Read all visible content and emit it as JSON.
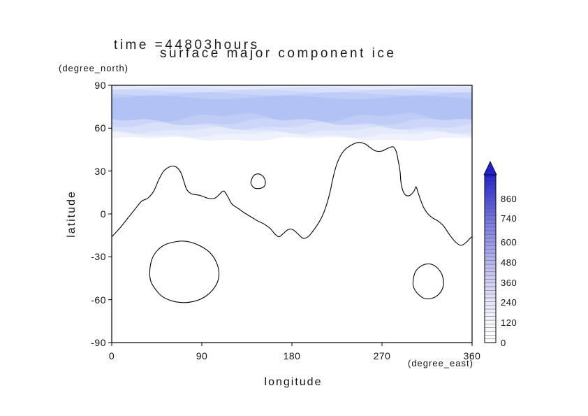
{
  "chart_data": {
    "type": "filled_contour_map",
    "title_line1": "time =44803hours",
    "title_line2": "surface major component ice",
    "xlabel": "longitude",
    "xlabel_units": "(degree_east)",
    "ylabel": "latitude",
    "ylabel_units": "(degree_north)",
    "xlim": [
      0,
      360
    ],
    "ylim": [
      -90,
      90
    ],
    "xticks": [
      0,
      90,
      180,
      270,
      360
    ],
    "yticks": [
      90,
      60,
      30,
      0,
      -30,
      -60,
      -90
    ],
    "grid": false,
    "frame_color": "#000000",
    "contour_line_color": "#000000",
    "colorbar": {
      "position": "right",
      "min": 0,
      "max": 1000,
      "tick_labels": [
        0,
        120,
        240,
        360,
        480,
        600,
        740,
        860
      ],
      "low_color": "#ffffff",
      "high_color": "#2121cf",
      "overflow_arrow": true,
      "segments": 45
    },
    "ice_bands": [
      {
        "level": 1,
        "south": 52.5,
        "north": 90,
        "amp": 1.2,
        "color": "#eff2fd"
      },
      {
        "level": 2,
        "south": 55.5,
        "north": 89.5,
        "amp": 1.4,
        "color": "#e4eafc"
      },
      {
        "level": 3,
        "south": 58.5,
        "north": 88,
        "amp": 1.6,
        "color": "#d8e0fa"
      },
      {
        "level": 4,
        "south": 61.5,
        "north": 86,
        "amp": 1.8,
        "color": "#cbd6f8"
      },
      {
        "level": 5,
        "south": 64.5,
        "north": 84,
        "amp": 2.0,
        "color": "#bfccf6"
      },
      {
        "level": 6,
        "south": 67.5,
        "north": 81.5,
        "amp": 2.4,
        "color": "#b3c2f4"
      }
    ],
    "contour_lines": {
      "dichotomy": [
        [
          0,
          -16
        ],
        [
          8,
          -10
        ],
        [
          16,
          -3
        ],
        [
          24,
          4
        ],
        [
          30,
          9
        ],
        [
          36,
          11
        ],
        [
          42,
          16
        ],
        [
          47,
          24
        ],
        [
          52,
          30
        ],
        [
          58,
          33
        ],
        [
          64,
          33
        ],
        [
          69,
          29
        ],
        [
          72,
          23
        ],
        [
          75,
          17
        ],
        [
          80,
          14
        ],
        [
          88,
          13
        ],
        [
          96,
          11
        ],
        [
          103,
          11
        ],
        [
          108,
          14
        ],
        [
          112,
          16
        ],
        [
          116,
          12
        ],
        [
          120,
          7
        ],
        [
          126,
          4
        ],
        [
          132,
          1
        ],
        [
          139,
          -2
        ],
        [
          146,
          -5
        ],
        [
          152,
          -7
        ],
        [
          158,
          -10
        ],
        [
          163,
          -14
        ],
        [
          167,
          -16
        ],
        [
          171,
          -14
        ],
        [
          176,
          -11
        ],
        [
          181,
          -11
        ],
        [
          186,
          -14
        ],
        [
          191,
          -17
        ],
        [
          196,
          -16
        ],
        [
          201,
          -12
        ],
        [
          206,
          -7
        ],
        [
          210,
          -2
        ],
        [
          214,
          5
        ],
        [
          218,
          15
        ],
        [
          221,
          25
        ],
        [
          224,
          33
        ],
        [
          228,
          40
        ],
        [
          233,
          45
        ],
        [
          239,
          48
        ],
        [
          246,
          50
        ],
        [
          253,
          49
        ],
        [
          259,
          46
        ],
        [
          264,
          44
        ],
        [
          270,
          44
        ],
        [
          276,
          46
        ],
        [
          281,
          47
        ],
        [
          284,
          44
        ],
        [
          286,
          38
        ],
        [
          288,
          30
        ],
        [
          289,
          22
        ],
        [
          291,
          16
        ],
        [
          294,
          13
        ],
        [
          298,
          13
        ],
        [
          302,
          16
        ],
        [
          304,
          19
        ],
        [
          306,
          15
        ],
        [
          309,
          9
        ],
        [
          312,
          4
        ],
        [
          316,
          0
        ],
        [
          321,
          -3
        ],
        [
          326,
          -5
        ],
        [
          331,
          -8
        ],
        [
          335,
          -12
        ],
        [
          339,
          -16
        ],
        [
          344,
          -20
        ],
        [
          349,
          -22
        ],
        [
          354,
          -20
        ],
        [
          358,
          -17
        ],
        [
          360,
          -16
        ]
      ],
      "elysium": [
        [
          139,
          22
        ],
        [
          141,
          26
        ],
        [
          145,
          28
        ],
        [
          150,
          27
        ],
        [
          153,
          24
        ],
        [
          153,
          20
        ],
        [
          149,
          18
        ],
        [
          143,
          18
        ],
        [
          140,
          20
        ]
      ],
      "hellas": [
        [
          38,
          -40
        ],
        [
          40,
          -32
        ],
        [
          45,
          -26
        ],
        [
          52,
          -22
        ],
        [
          60,
          -20
        ],
        [
          70,
          -19
        ],
        [
          80,
          -20
        ],
        [
          90,
          -23
        ],
        [
          98,
          -27
        ],
        [
          104,
          -33
        ],
        [
          107,
          -40
        ],
        [
          106,
          -47
        ],
        [
          101,
          -53
        ],
        [
          93,
          -58
        ],
        [
          83,
          -61
        ],
        [
          72,
          -62
        ],
        [
          61,
          -61
        ],
        [
          51,
          -58
        ],
        [
          44,
          -53
        ],
        [
          39,
          -47
        ]
      ],
      "argyre": [
        [
          301,
          -48
        ],
        [
          303,
          -41
        ],
        [
          308,
          -37
        ],
        [
          315,
          -35
        ],
        [
          322,
          -36
        ],
        [
          328,
          -40
        ],
        [
          331,
          -45
        ],
        [
          331,
          -51
        ],
        [
          327,
          -56
        ],
        [
          320,
          -59
        ],
        [
          312,
          -59
        ],
        [
          306,
          -56
        ],
        [
          302,
          -52
        ]
      ]
    }
  }
}
